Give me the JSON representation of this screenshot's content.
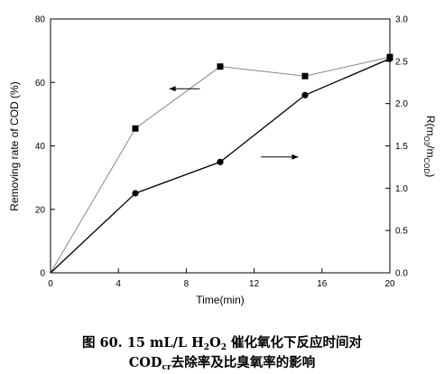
{
  "chart_data": {
    "type": "line",
    "xlabel": "Time(min)",
    "ylabel_left": "Removing rate of COD (%)",
    "ylabel_right": {
      "base": "R(m",
      "sub1": "O3",
      "mid": "/m",
      "sub2": "COD",
      "end": ")"
    },
    "xlim": [
      0,
      20
    ],
    "ylim_left": [
      0,
      80
    ],
    "ylim_right": [
      0.0,
      3.0
    ],
    "x_ticks": [
      "0",
      "4",
      "8",
      "12",
      "16",
      "20"
    ],
    "y_left_ticks": [
      "0",
      "20",
      "40",
      "60",
      "80"
    ],
    "y_right_ticks": [
      "0.0",
      "0.5",
      "1.0",
      "1.5",
      "2.0",
      "2.5",
      "3.0"
    ],
    "series": [
      {
        "marker": "square",
        "axis": "left",
        "color": "#888888",
        "points": [
          [
            0,
            0
          ],
          [
            5,
            45.5
          ],
          [
            10,
            65
          ],
          [
            15,
            62
          ],
          [
            20,
            68
          ]
        ]
      },
      {
        "marker": "circle",
        "axis": "right",
        "color": "#000000",
        "points": [
          [
            0,
            0.0
          ],
          [
            5,
            0.94
          ],
          [
            10,
            1.31
          ],
          [
            15,
            2.1
          ],
          [
            20,
            2.53
          ]
        ]
      }
    ],
    "annotations": [
      {
        "type": "arrow",
        "direction": "left",
        "points_to": "left-axis"
      },
      {
        "type": "arrow",
        "direction": "right",
        "points_to": "right-axis"
      }
    ],
    "grid": false
  },
  "caption": {
    "fig_label": "图 6",
    "line1_conc": "0. 15 mL/L H",
    "line1_sub1": "2",
    "line1_o": "O",
    "line1_sub2": "2",
    "line1_text": " 催化氧化下反应时间对",
    "line2_cod": "COD",
    "line2_sub": "cr",
    "line2_text": "去除率及比臭氧率的影响"
  }
}
